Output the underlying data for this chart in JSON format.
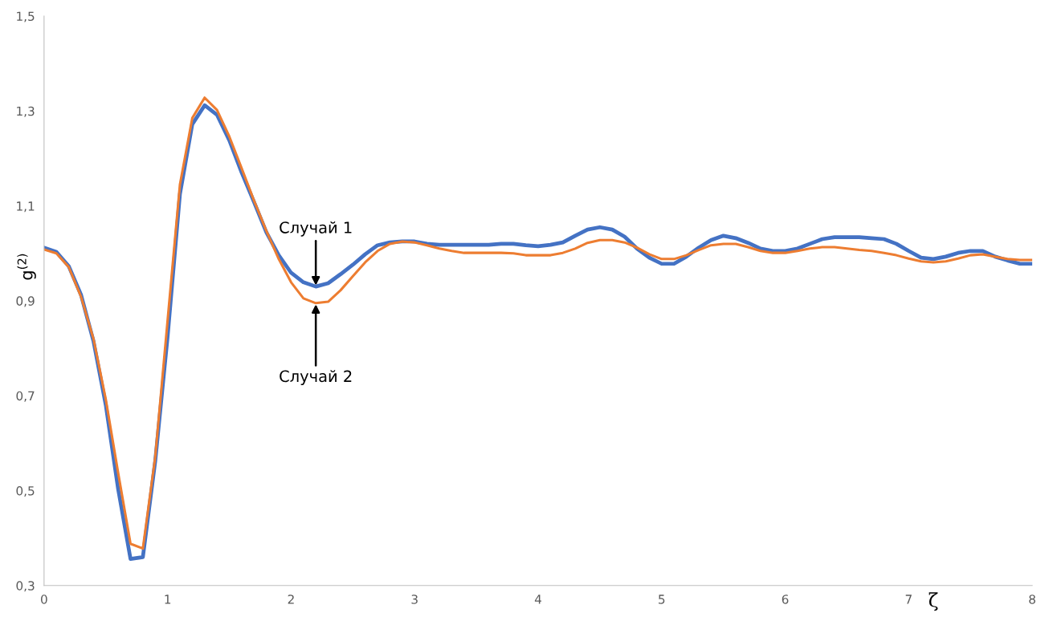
{
  "chart_data": {
    "type": "line",
    "xlabel": "ζ",
    "ylabel": "g$^{(2)}$",
    "x": [
      0,
      0.1,
      0.2,
      0.3,
      0.4,
      0.5,
      0.6,
      0.7,
      0.8,
      0.9,
      1.0,
      1.1,
      1.2,
      1.3,
      1.4,
      1.5,
      1.6,
      1.7,
      1.8,
      1.9,
      2.0,
      2.1,
      2.2,
      2.3,
      2.4,
      2.5,
      2.6,
      2.7,
      2.8,
      2.9,
      3.0,
      3.1,
      3.2,
      3.3,
      3.4,
      3.5,
      3.6,
      3.7,
      3.8,
      3.9,
      4.0,
      4.1,
      4.2,
      4.3,
      4.4,
      4.5,
      4.6,
      4.7,
      4.8,
      4.9,
      5.0,
      5.1,
      5.2,
      5.3,
      5.4,
      5.5,
      5.6,
      5.7,
      5.8,
      5.9,
      6.0,
      6.1,
      6.2,
      6.3,
      6.4,
      6.5,
      6.6,
      6.7,
      6.8,
      6.9,
      7.0,
      7.1,
      7.2,
      7.3,
      7.4,
      7.5,
      7.6,
      7.7,
      7.8,
      7.9,
      8.0
    ],
    "series": [
      {
        "color": "#4472c4",
        "values": [
          1.012,
          1.003,
          0.973,
          0.912,
          0.815,
          0.68,
          0.503,
          0.356,
          0.36,
          0.562,
          0.824,
          1.125,
          1.272,
          1.312,
          1.292,
          1.238,
          1.17,
          1.108,
          1.044,
          0.996,
          0.959,
          0.939,
          0.93,
          0.937,
          0.956,
          0.976,
          0.998,
          1.017,
          1.023,
          1.025,
          1.025,
          1.02,
          1.018,
          1.018,
          1.018,
          1.018,
          1.018,
          1.02,
          1.02,
          1.017,
          1.015,
          1.018,
          1.023,
          1.037,
          1.05,
          1.055,
          1.05,
          1.035,
          1.01,
          0.991,
          0.978,
          0.978,
          0.993,
          1.012,
          1.028,
          1.037,
          1.032,
          1.022,
          1.01,
          1.005,
          1.005,
          1.01,
          1.02,
          1.03,
          1.034,
          1.034,
          1.034,
          1.032,
          1.03,
          1.02,
          1.005,
          0.991,
          0.988,
          0.993,
          1.001,
          1.005,
          1.005,
          0.993,
          0.985,
          0.978,
          0.978
        ]
      },
      {
        "color": "#ed7d31",
        "values": [
          1.008,
          1.0,
          0.971,
          0.908,
          0.82,
          0.692,
          0.537,
          0.388,
          0.378,
          0.571,
          0.858,
          1.145,
          1.285,
          1.328,
          1.302,
          1.246,
          1.179,
          1.111,
          1.047,
          0.988,
          0.939,
          0.905,
          0.895,
          0.898,
          0.922,
          0.952,
          0.981,
          1.005,
          1.02,
          1.025,
          1.023,
          1.017,
          1.01,
          1.005,
          1.001,
          1.001,
          1.001,
          1.001,
          1.0,
          0.996,
          0.996,
          0.996,
          1.001,
          1.01,
          1.022,
          1.028,
          1.028,
          1.023,
          1.012,
          0.998,
          0.988,
          0.988,
          0.996,
          1.007,
          1.017,
          1.02,
          1.02,
          1.013,
          1.005,
          1.001,
          1.001,
          1.005,
          1.01,
          1.013,
          1.013,
          1.01,
          1.007,
          1.005,
          1.001,
          0.996,
          0.989,
          0.983,
          0.981,
          0.983,
          0.989,
          0.996,
          0.998,
          0.993,
          0.988,
          0.986,
          0.986
        ]
      }
    ],
    "xlim": [
      0,
      8
    ],
    "xticks": [
      0,
      1,
      2,
      3,
      4,
      5,
      6,
      7,
      8
    ],
    "ylim": [
      0.3,
      1.5
    ],
    "yticks": [
      {
        "value": 0.3,
        "label": "0,3"
      },
      {
        "value": 0.5,
        "label": "0,5"
      },
      {
        "value": 0.7,
        "label": "0,7"
      },
      {
        "value": 0.9,
        "label": "0,9"
      },
      {
        "value": 1.1,
        "label": "1,1"
      },
      {
        "value": 1.3,
        "label": "1,3"
      },
      {
        "value": 1.5,
        "label": "1,5"
      }
    ],
    "annotations": [
      {
        "text": "Случай 1",
        "x": 2.2,
        "y": 0.93
      },
      {
        "text": "Случай 2",
        "x": 2.2,
        "y": 0.895
      }
    ],
    "grid": false,
    "legend": false,
    "marker": "none",
    "line_style": "solid"
  }
}
